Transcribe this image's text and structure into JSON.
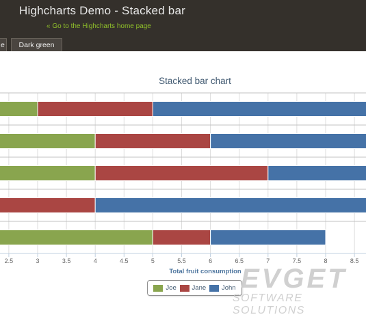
{
  "header": {
    "title": "Highcharts Demo - Stacked bar",
    "home_link": "« Go to the Highcharts home page",
    "tabs": [
      "e",
      "Dark green"
    ]
  },
  "watermark": {
    "brand": "EVGET",
    "tagline": "SOFTWARE SOLUTIONS"
  },
  "chart_data": {
    "type": "bar",
    "stacked": true,
    "orientation": "horizontal",
    "title": "Stacked bar chart",
    "xlabel": "Total fruit consumption",
    "ylabel": "",
    "x_ticks": [
      "2.5",
      "3",
      "3.5",
      "4",
      "4.5",
      "5",
      "5.5",
      "6",
      "6.5",
      "7",
      "7.5",
      "8",
      "8.5"
    ],
    "xlim_visible": [
      2.05,
      8.7
    ],
    "grid": true,
    "legend_position": "bottom",
    "series": [
      {
        "name": "Joe",
        "color": "#89a54e",
        "values": [
          3,
          4,
          4,
          2,
          5
        ]
      },
      {
        "name": "Jane",
        "color": "#aa4643",
        "values": [
          2,
          2,
          3,
          2,
          1
        ]
      },
      {
        "name": "John",
        "color": "#4572a7",
        "values": [
          5,
          3,
          4,
          7,
          2
        ]
      }
    ]
  }
}
